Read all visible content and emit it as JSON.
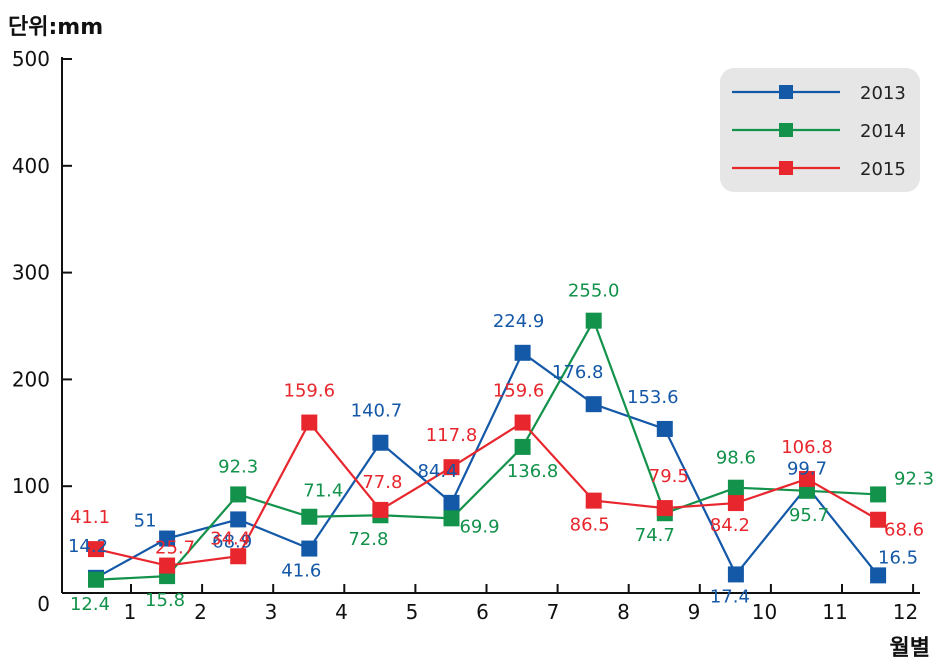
{
  "chart_data": {
    "type": "line",
    "unit_label": "단위:mm",
    "xlabel": "월별",
    "x": [
      "1",
      "2",
      "3",
      "4",
      "5",
      "6",
      "7",
      "8",
      "9",
      "10",
      "11",
      "12"
    ],
    "y_ticks": [
      "0",
      "100",
      "200",
      "300",
      "400",
      "500"
    ],
    "ylim": [
      0,
      500
    ],
    "grid": false,
    "legend_position": "top-right",
    "series": [
      {
        "name": "2013",
        "color": "#1458a8",
        "values": [
          14.2,
          51,
          68.9,
          41.6,
          140.7,
          84.4,
          224.9,
          176.8,
          153.6,
          17.4,
          99.7,
          16.5
        ],
        "labels": [
          "14.2",
          "51",
          "68.9",
          "41.6",
          "140.7",
          "84.4",
          "224.9",
          "176.8",
          "153.6",
          "17.4",
          "99.7",
          "16.5"
        ]
      },
      {
        "name": "2014",
        "color": "#12924a",
        "values": [
          12.4,
          15.8,
          92.3,
          71.4,
          72.8,
          69.9,
          136.8,
          255.0,
          74.7,
          98.6,
          95.7,
          92.3
        ],
        "labels": [
          "12.4",
          "15.8",
          "92.3",
          "71.4",
          "72.8",
          "69.9",
          "136.8",
          "255.0",
          "74.7",
          "98.6",
          "95.7",
          "92.3"
        ]
      },
      {
        "name": "2015",
        "color": "#e8262d",
        "values": [
          41.1,
          25.7,
          34.4,
          159.6,
          77.8,
          117.8,
          159.6,
          86.5,
          79.5,
          84.2,
          106.8,
          68.6
        ],
        "labels": [
          "41.1",
          "25.7",
          "34.4",
          "159.6",
          "77.8",
          "117.8",
          "159.6",
          "86.5",
          "79.5",
          "84.2",
          "106.8",
          "68.6"
        ]
      }
    ]
  }
}
